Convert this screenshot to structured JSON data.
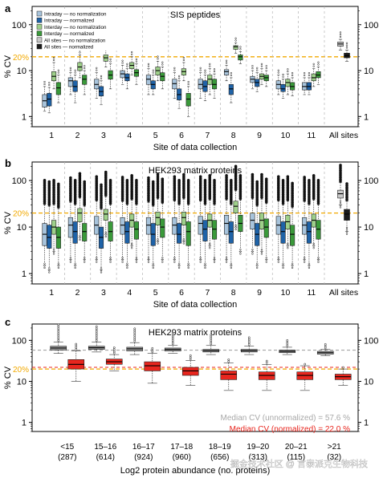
{
  "colors": {
    "intraday_raw": "#a8c4dc",
    "intraday_norm": "#1f63a8",
    "interday_raw": "#9ed08a",
    "interday_norm": "#3a9a3a",
    "allsites_raw": "#c8c8c8",
    "allsites_norm": "#1a1a1a",
    "c_raw": "#9a9a9a",
    "c_norm": "#e8261e",
    "threshold": "#f2a900",
    "unnorm_text": "#a8a8a8",
    "norm_text": "#e8261e"
  },
  "watermark": "掘金技术社区 @ 言泰派克生物科技",
  "chart_data": [
    {
      "panel": "a",
      "type": "boxplot",
      "title": "SIS peptides",
      "xlabel": "Site of data collection",
      "ylabel": "% CV",
      "yscale": "log",
      "ylim": [
        0.6,
        250
      ],
      "yticks": [
        1,
        10,
        100
      ],
      "threshold": {
        "value": 20,
        "label": "20%"
      },
      "categories": [
        "1",
        "2",
        "3",
        "4",
        "5",
        "6",
        "7",
        "8",
        "9",
        "10",
        "11",
        "All sites"
      ],
      "legend": [
        "Intraday — no normalization",
        "Intraday — normalized",
        "Interday — no normalization",
        "Interday — normalized",
        "All sites — no normalization",
        "All sites — normalized"
      ],
      "legend_position": "top-left",
      "grid": "vertical-dashed",
      "boxes": [
        [
          [
            1.3,
            1.6,
            2.2,
            3,
            4.5
          ],
          [
            1.2,
            1.7,
            2.4,
            3.2,
            4.3
          ],
          [
            4,
            6,
            7.5,
            9.5,
            15
          ],
          [
            2,
            3,
            4.2,
            5.5,
            8
          ]
        ],
        [
          [
            3,
            4.5,
            6,
            7,
            9
          ],
          [
            2,
            3.5,
            4.5,
            6,
            8
          ],
          [
            7,
            10,
            12,
            15,
            22
          ],
          [
            3,
            5,
            6.5,
            8,
            10
          ]
        ],
        [
          [
            2.5,
            4,
            5,
            6.5,
            9
          ],
          [
            1.8,
            2.8,
            3.5,
            4.5,
            6
          ],
          [
            12,
            16,
            19,
            22,
            28
          ],
          [
            4,
            6.5,
            8,
            10,
            14
          ]
        ],
        [
          [
            5,
            7,
            8.5,
            10,
            13
          ],
          [
            4,
            6,
            7,
            8.5,
            11
          ],
          [
            8,
            11,
            13,
            15,
            20
          ],
          [
            5,
            7.5,
            9,
            10.5,
            14
          ]
        ],
        [
          [
            3,
            5,
            6.5,
            8,
            11
          ],
          [
            3,
            4,
            5,
            6,
            8
          ],
          [
            6,
            8,
            10,
            12,
            16
          ],
          [
            4,
            6,
            7.5,
            9,
            12
          ]
        ],
        [
          [
            2.5,
            4,
            5.2,
            6.5,
            9
          ],
          [
            1.5,
            2.3,
            3,
            4,
            6
          ],
          [
            6,
            8,
            9.5,
            11,
            15
          ],
          [
            1,
            1.7,
            2.4,
            3.2,
            4.5
          ]
        ],
        [
          [
            2.5,
            4,
            5,
            6.5,
            9
          ],
          [
            2.2,
            3.5,
            4.5,
            6,
            8
          ],
          [
            3,
            5,
            6.5,
            8,
            11
          ],
          [
            2.5,
            4,
            5,
            6.5,
            8.5
          ]
        ],
        [
          [
            6,
            8,
            9.5,
            10.5,
            13
          ],
          [
            2,
            3,
            4,
            5,
            7
          ],
          [
            24,
            29,
            33,
            35,
            40
          ],
          [
            14,
            17,
            20,
            22,
            26
          ]
        ],
        [
          [
            4,
            5.5,
            6.5,
            7.5,
            10
          ],
          [
            3.5,
            4.5,
            5.5,
            6.5,
            9
          ],
          [
            5,
            6.5,
            7.5,
            8.5,
            11
          ],
          [
            4.5,
            6,
            7,
            8,
            10
          ]
        ],
        [
          [
            3,
            4,
            5,
            6,
            8
          ],
          [
            2.5,
            3.5,
            4,
            5,
            6.5
          ],
          [
            3,
            4.5,
            5.5,
            6.5,
            8.5
          ],
          [
            2.8,
            3.8,
            4.5,
            5.5,
            7
          ]
        ],
        [
          [
            3,
            3.8,
            4.5,
            5.5,
            7
          ],
          [
            3,
            3.8,
            4.5,
            5.5,
            7
          ],
          [
            4.5,
            6,
            7,
            8.5,
            11
          ],
          [
            5,
            7,
            8,
            9.5,
            12
          ]
        ],
        [
          [
            28,
            34,
            38,
            42,
            48
          ],
          [
            16,
            19,
            21,
            24,
            28
          ]
        ]
      ]
    },
    {
      "panel": "b",
      "type": "boxplot",
      "title": "HEK293 matrix proteins",
      "xlabel": "Site of data collection",
      "ylabel": "% CV",
      "yscale": "log",
      "ylim": [
        0.6,
        250
      ],
      "yticks": [
        1,
        10,
        100
      ],
      "threshold": {
        "value": 20,
        "label": "20%"
      },
      "categories": [
        "1",
        "2",
        "3",
        "4",
        "5",
        "6",
        "7",
        "8",
        "9",
        "10",
        "11",
        "All sites"
      ],
      "grid": "vertical-dashed",
      "boxes": [
        [
          [
            1.5,
            4,
            7,
            12,
            30
          ],
          [
            1.2,
            3.5,
            6,
            11,
            28
          ],
          [
            3,
            7,
            10,
            14,
            30
          ],
          [
            1.5,
            3.5,
            6,
            10,
            25
          ]
        ],
        [
          [
            2,
            6,
            11,
            16,
            34
          ],
          [
            1.5,
            4.5,
            8,
            13,
            30
          ],
          [
            6,
            13,
            20,
            25,
            42
          ],
          [
            2,
            5,
            8,
            12,
            28
          ]
        ],
        [
          [
            2,
            7,
            11,
            17,
            36
          ],
          [
            1.2,
            3.5,
            6,
            10,
            24
          ],
          [
            7,
            14,
            19,
            24,
            45
          ],
          [
            2,
            5,
            8,
            13,
            30
          ]
        ],
        [
          [
            2,
            7,
            11,
            16,
            35
          ],
          [
            1.5,
            4.5,
            8,
            13,
            30
          ],
          [
            4,
            10,
            14,
            19,
            38
          ],
          [
            2,
            5.5,
            9,
            13,
            30
          ]
        ],
        [
          [
            2,
            7,
            11,
            16,
            34
          ],
          [
            1.5,
            4,
            7,
            12,
            28
          ],
          [
            5,
            11,
            16,
            21,
            40
          ],
          [
            2,
            6,
            10,
            15,
            32
          ]
        ],
        [
          [
            2,
            7,
            11,
            16,
            36
          ],
          [
            1.5,
            4.5,
            7,
            12,
            30
          ],
          [
            5,
            11,
            16,
            21,
            40
          ],
          [
            1.5,
            4,
            8,
            13,
            30
          ]
        ],
        [
          [
            2,
            7,
            12,
            17,
            36
          ],
          [
            1.5,
            5,
            9,
            14,
            30
          ],
          [
            4,
            10,
            14,
            19,
            38
          ],
          [
            2,
            5.5,
            9,
            14,
            30
          ]
        ],
        [
          [
            2,
            7,
            12,
            18,
            38
          ],
          [
            1.5,
            4.5,
            8,
            13,
            30
          ],
          [
            10,
            20,
            28,
            36,
            60
          ],
          [
            3,
            8,
            12,
            18,
            38
          ]
        ],
        [
          [
            3,
            9,
            14,
            20,
            40
          ],
          [
            1.5,
            4,
            7,
            12,
            28
          ],
          [
            3,
            9,
            14,
            20,
            40
          ],
          [
            2,
            6,
            10,
            15,
            32
          ]
        ],
        [
          [
            2,
            7,
            11,
            17,
            36
          ],
          [
            1.5,
            4.5,
            8,
            13,
            30
          ],
          [
            4,
            9,
            13,
            18,
            36
          ],
          [
            1.5,
            4,
            7,
            11,
            26
          ]
        ],
        [
          [
            2,
            7,
            11,
            16,
            35
          ],
          [
            1.5,
            4.5,
            8,
            13,
            30
          ],
          [
            4,
            10,
            14,
            19,
            38
          ],
          [
            2,
            5.5,
            9,
            14,
            30
          ]
        ],
        [
          [
            30,
            42,
            52,
            62,
            90
          ],
          [
            8,
            14,
            19,
            24,
            36
          ]
        ]
      ]
    },
    {
      "panel": "c",
      "type": "boxplot",
      "title": "HEK293 matrix proteins",
      "xlabel": "Log2 protein abundance (no. proteins)",
      "ylabel": "% CV",
      "yscale": "log",
      "ylim": [
        0.6,
        250
      ],
      "yticks": [
        1,
        10,
        100
      ],
      "threshold": {
        "value": 20,
        "label": "20%"
      },
      "median_lines": {
        "unnormalized": 57.6,
        "normalized": 22.0
      },
      "annotations": [
        "Median CV (unnormalized) = 57.6 %",
        "Median CV (normalized) = 22.0 %"
      ],
      "categories": [
        "<15",
        "15–16",
        "16–17",
        "17–18",
        "18–19",
        "19–20",
        "20–21",
        ">21"
      ],
      "counts": [
        "(287)",
        "(614)",
        "(924)",
        "(960)",
        "(656)",
        "(313)",
        "(115)",
        "(32)"
      ],
      "boxes": [
        [
          [
            48,
            58,
            65,
            72,
            90
          ],
          [
            10,
            20,
            26,
            34,
            55
          ]
        ],
        [
          [
            52,
            60,
            66,
            72,
            90
          ],
          [
            18,
            26,
            30,
            35,
            45
          ]
        ],
        [
          [
            45,
            55,
            62,
            68,
            88
          ],
          [
            9,
            18,
            24,
            30,
            48
          ]
        ],
        [
          [
            48,
            55,
            60,
            65,
            75
          ],
          [
            8,
            14,
            18,
            22,
            32
          ]
        ],
        [
          [
            45,
            52,
            56,
            60,
            75
          ],
          [
            6,
            11,
            15,
            18,
            28
          ]
        ],
        [
          [
            45,
            52,
            56,
            60,
            72
          ],
          [
            6,
            11,
            14,
            17,
            26
          ]
        ],
        [
          [
            45,
            50,
            54,
            58,
            68
          ],
          [
            6,
            11,
            14,
            17,
            24
          ]
        ],
        [
          [
            42,
            46,
            50,
            54,
            60
          ],
          [
            8,
            11,
            13,
            15,
            20
          ]
        ]
      ]
    }
  ]
}
